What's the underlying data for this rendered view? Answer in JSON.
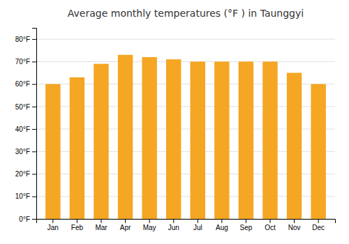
{
  "chart_data": {
    "type": "bar",
    "title": "Average monthly temperatures (°F ) in Taunggyi",
    "categories": [
      "Jan",
      "Feb",
      "Mar",
      "Apr",
      "May",
      "Jun",
      "Jul",
      "Aug",
      "Sep",
      "Oct",
      "Nov",
      "Dec"
    ],
    "values": [
      60,
      63,
      69,
      73,
      72,
      71,
      70,
      70,
      70,
      70,
      65,
      60
    ],
    "color": "#F5A623",
    "ylim": [
      0,
      85
    ],
    "yticks": [
      {
        "value": 0,
        "label": "0°F"
      },
      {
        "value": 10,
        "label": "10°F"
      },
      {
        "value": 20,
        "label": "20°F"
      },
      {
        "value": 30,
        "label": "30°F"
      },
      {
        "value": 40,
        "label": "40°F"
      },
      {
        "value": 50,
        "label": "50°F"
      },
      {
        "value": 60,
        "label": "60°F"
      },
      {
        "value": 70,
        "label": "70°F"
      },
      {
        "value": 80,
        "label": "80°F"
      }
    ],
    "grid": true
  }
}
